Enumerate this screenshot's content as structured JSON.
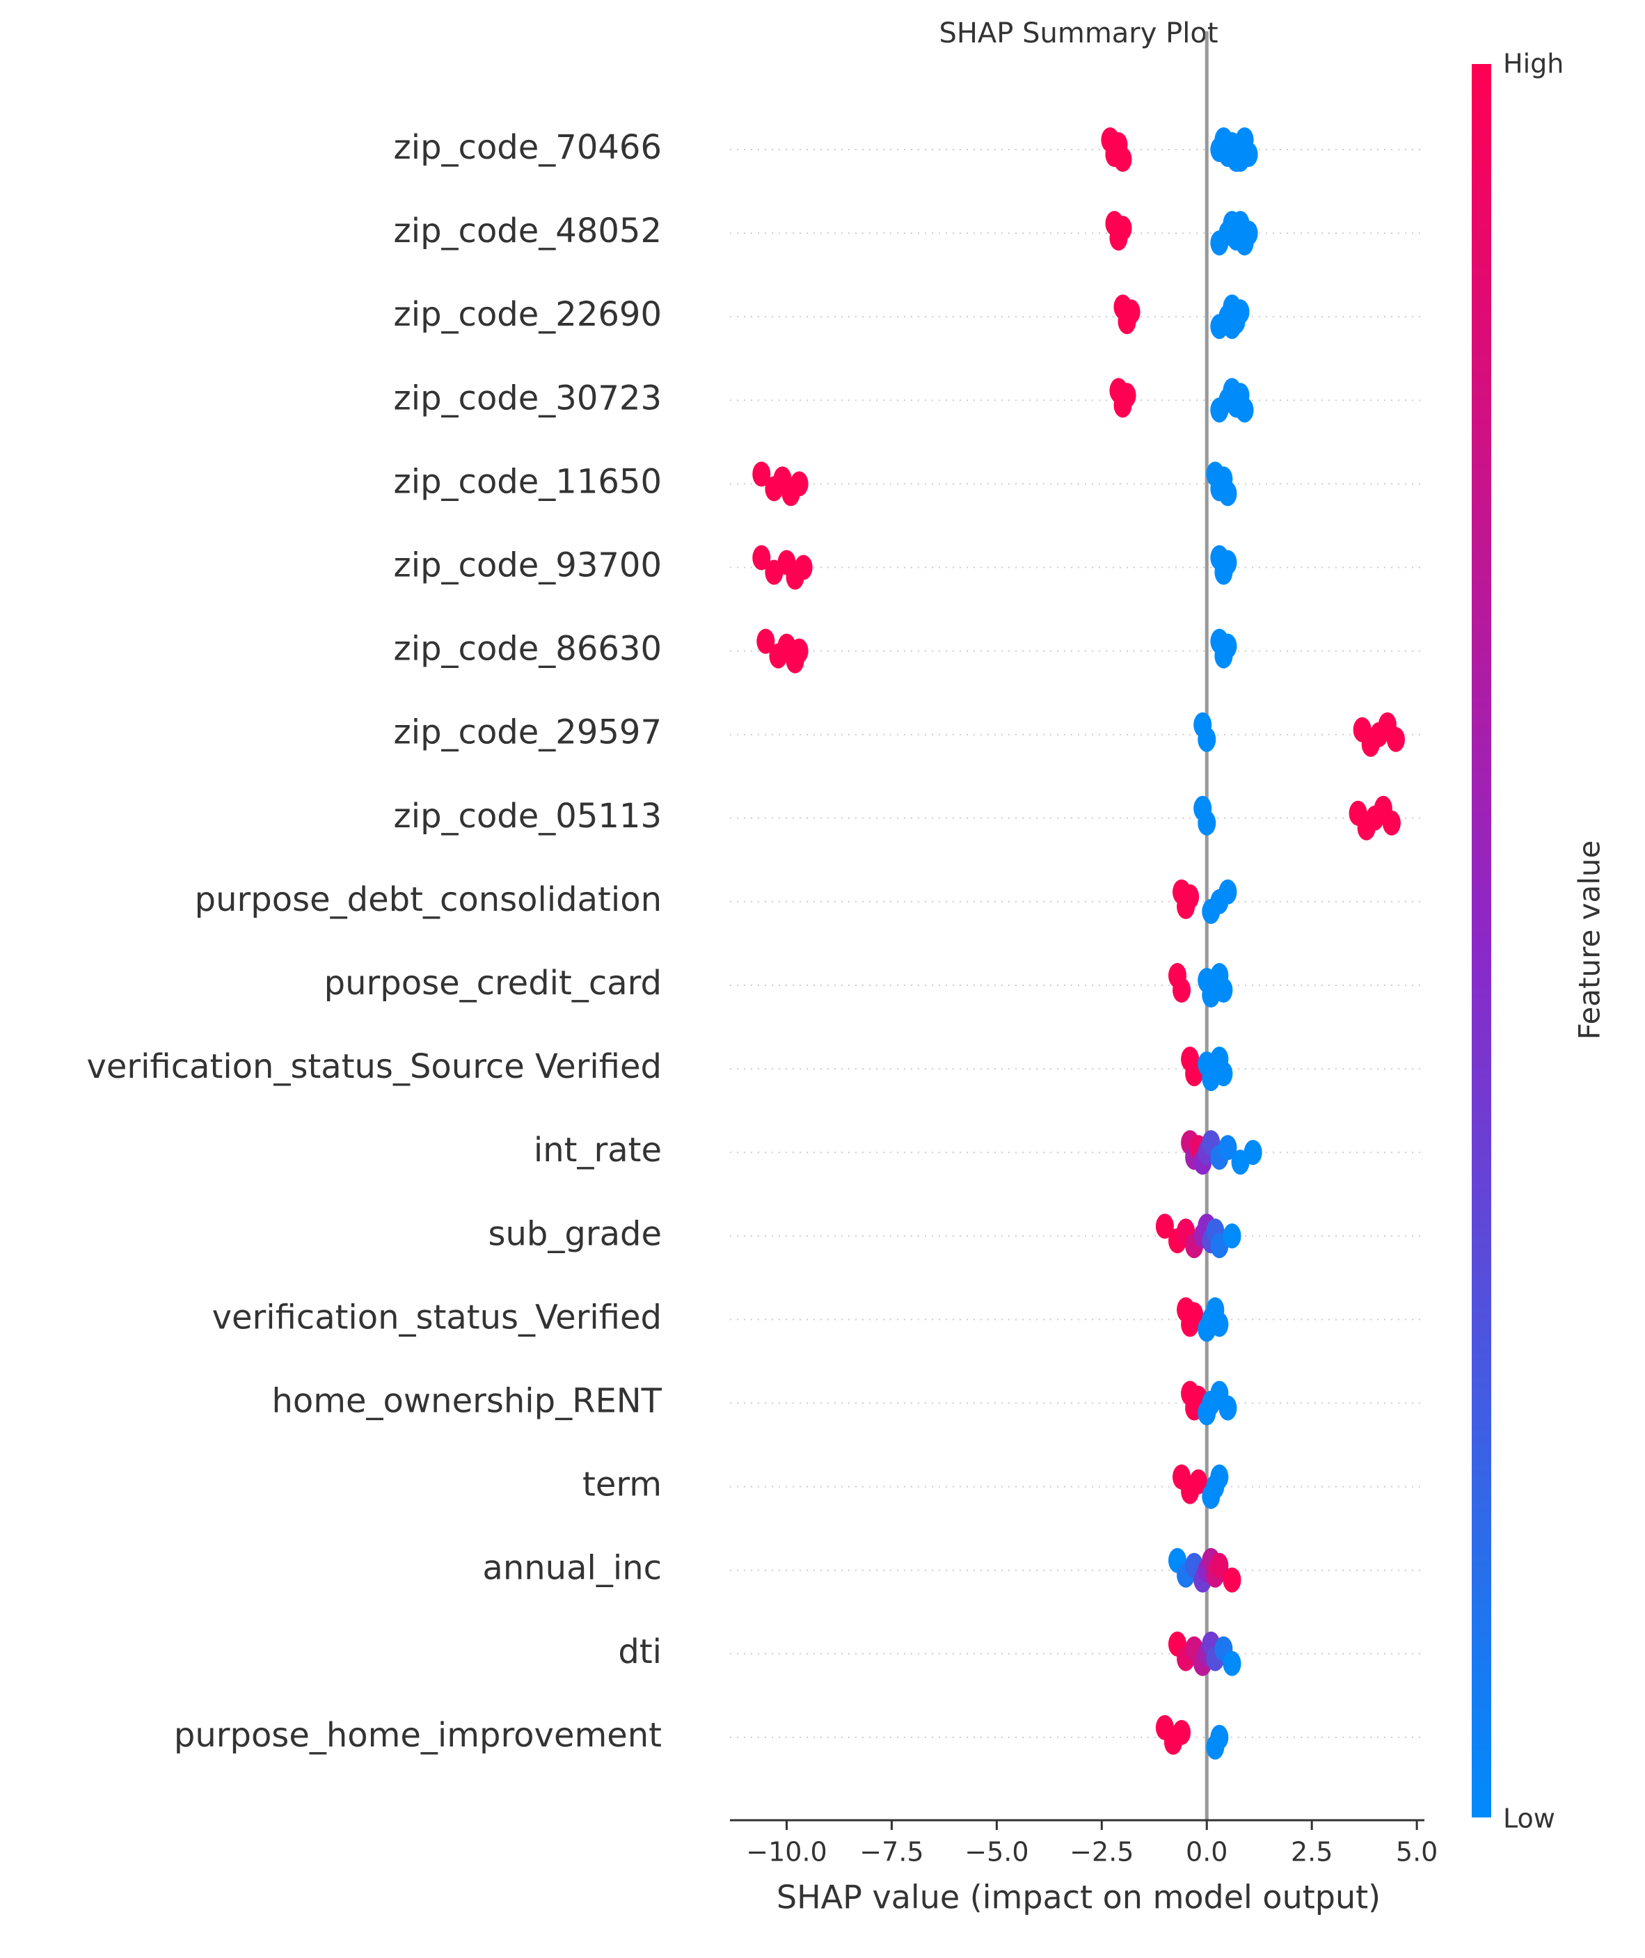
{
  "chart_data": {
    "type": "beeswarm",
    "title": "SHAP Summary Plot",
    "xlabel": "SHAP value (impact on model output)",
    "colorbar_label": "Feature value",
    "colorbar_high": "High",
    "colorbar_low": "Low",
    "low_color": "#008bfb",
    "high_color": "#ff0052",
    "xlim": [
      -11.35,
      5.18
    ],
    "xticks": [
      {
        "value": -10,
        "label": "−10.0"
      },
      {
        "value": -7.5,
        "label": "−7.5"
      },
      {
        "value": -5,
        "label": "−5.0"
      },
      {
        "value": -2.5,
        "label": "−2.5"
      },
      {
        "value": 0,
        "label": "0.0"
      },
      {
        "value": 2.5,
        "label": "2.5"
      },
      {
        "value": 5,
        "label": "5.0"
      }
    ],
    "categories": [
      "zip_code_70466",
      "zip_code_48052",
      "zip_code_22690",
      "zip_code_30723",
      "zip_code_11650",
      "zip_code_93700",
      "zip_code_86630",
      "zip_code_29597",
      "zip_code_05113",
      "purpose_debt_consolidation",
      "purpose_credit_card",
      "verification_status_Source Verified",
      "int_rate",
      "sub_grade",
      "verification_status_Verified",
      "home_ownership_RENT",
      "term",
      "annual_inc",
      "dti",
      "purpose_home_improvement"
    ],
    "values": [
      [
        -2.3,
        -2.2,
        -2.1,
        -2.0,
        0.3,
        0.4,
        0.5,
        0.6,
        0.7,
        0.8,
        0.9,
        1.0,
        0.6,
        0.8
      ],
      [
        -2.2,
        -2.1,
        -2.0,
        0.3,
        0.5,
        0.6,
        0.7,
        0.8,
        0.9,
        1.0,
        0.8
      ],
      [
        -2.0,
        -1.9,
        -1.8,
        0.3,
        0.5,
        0.6,
        0.7,
        0.8,
        0.6
      ],
      [
        -2.1,
        -2.0,
        -1.9,
        0.3,
        0.5,
        0.6,
        0.7,
        0.8,
        0.9
      ],
      [
        -10.6,
        -10.3,
        -10.1,
        -9.9,
        -9.7,
        0.2,
        0.3,
        0.4,
        0.5
      ],
      [
        -10.6,
        -10.3,
        -10.0,
        -9.8,
        -9.6,
        0.3,
        0.4,
        0.5
      ],
      [
        -10.5,
        -10.2,
        -10.0,
        -9.8,
        -9.7,
        0.3,
        0.4,
        0.5
      ],
      [
        -0.1,
        0.0,
        3.7,
        3.9,
        4.1,
        4.3,
        4.5
      ],
      [
        -0.1,
        0.0,
        3.6,
        3.8,
        4.0,
        4.2,
        4.4
      ],
      [
        -0.6,
        -0.5,
        -0.4,
        0.1,
        0.3,
        0.5
      ],
      [
        -0.7,
        -0.6,
        0.0,
        0.1,
        0.2,
        0.3,
        0.4
      ],
      [
        -0.4,
        -0.3,
        0.0,
        0.1,
        0.2,
        0.3,
        0.4
      ],
      [
        -0.4,
        -0.3,
        -0.2,
        -0.1,
        0.0,
        0.1,
        0.3,
        0.5,
        0.8,
        1.1
      ],
      [
        -1.0,
        -0.7,
        -0.5,
        -0.3,
        -0.1,
        0.0,
        0.1,
        0.2,
        0.3,
        0.6
      ],
      [
        -0.5,
        -0.4,
        -0.3,
        0.0,
        0.1,
        0.2,
        0.3
      ],
      [
        -0.4,
        -0.3,
        -0.2,
        0.0,
        0.1,
        0.3,
        0.5
      ],
      [
        -0.6,
        -0.4,
        -0.2,
        0.1,
        0.2,
        0.3
      ],
      [
        -0.7,
        -0.5,
        -0.3,
        -0.1,
        0.0,
        0.1,
        0.2,
        0.3,
        0.6
      ],
      [
        -0.7,
        -0.5,
        -0.3,
        -0.1,
        0.0,
        0.1,
        0.2,
        0.4,
        0.6
      ],
      [
        -1.0,
        -0.8,
        -0.6,
        0.2,
        0.3
      ]
    ],
    "feature_values": [
      [
        1,
        1,
        1,
        1,
        0,
        0,
        0,
        0,
        0,
        0,
        0,
        0,
        0,
        0
      ],
      [
        1,
        1,
        1,
        0,
        0,
        0,
        0,
        0,
        0,
        0,
        0
      ],
      [
        1,
        1,
        1,
        0,
        0,
        0,
        0,
        0,
        0
      ],
      [
        1,
        1,
        1,
        0,
        0,
        0,
        0,
        0,
        0
      ],
      [
        1,
        1,
        1,
        1,
        1,
        0,
        0,
        0,
        0
      ],
      [
        1,
        1,
        1,
        1,
        1,
        0,
        0,
        0
      ],
      [
        1,
        1,
        1,
        1,
        1,
        0,
        0,
        0
      ],
      [
        0,
        0,
        1,
        1,
        1,
        1,
        1
      ],
      [
        0,
        0,
        1,
        1,
        1,
        1,
        1
      ],
      [
        1,
        1,
        1,
        0,
        0,
        0
      ],
      [
        1,
        1,
        0,
        0,
        0,
        0,
        0
      ],
      [
        1,
        1,
        0,
        0,
        0,
        0,
        0
      ],
      [
        0.8,
        0.6,
        0.9,
        0.5,
        0.4,
        0.3,
        0.1,
        0.05,
        0,
        0
      ],
      [
        1,
        1,
        0.95,
        0.8,
        0.6,
        0.5,
        0.3,
        0.2,
        0.1,
        0
      ],
      [
        1,
        1,
        1,
        0,
        0,
        0,
        0
      ],
      [
        1,
        1,
        1,
        0,
        0,
        0,
        0
      ],
      [
        1,
        1,
        1,
        0,
        0,
        0
      ],
      [
        0,
        0.1,
        0.2,
        0.4,
        0.5,
        0.7,
        0.8,
        0.9,
        1
      ],
      [
        1,
        0.9,
        0.8,
        0.7,
        0.6,
        0.4,
        0.3,
        0.1,
        0
      ],
      [
        1,
        1,
        1,
        0,
        0
      ]
    ]
  }
}
